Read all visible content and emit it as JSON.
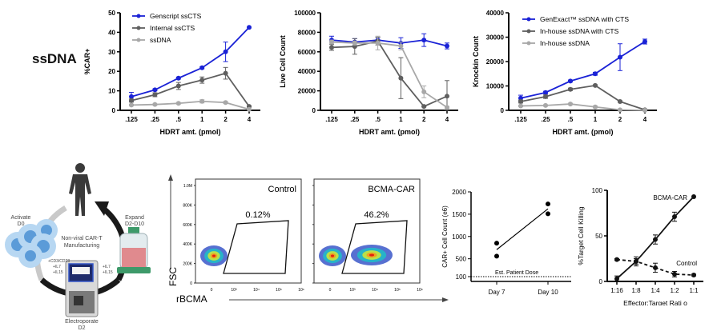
{
  "row_label": "ssDNA",
  "colors": {
    "blue": "#1a22d6",
    "dark_gray": "#5f5f5f",
    "light_gray": "#a8a8a8",
    "black": "#111111"
  },
  "chart_data": [
    {
      "id": "car-percent",
      "type": "line",
      "title": "",
      "xlabel": "HDRT amt. (pmol)",
      "ylabel": "%CAR+",
      "categories": [
        ".125",
        ".25",
        ".5",
        "1",
        "2",
        "4"
      ],
      "ylim": [
        0,
        50
      ],
      "yticks": [
        0,
        10,
        20,
        30,
        40,
        50
      ],
      "ytick_labels": [
        "0",
        "10",
        "20",
        "30",
        "40",
        "50"
      ],
      "legend_position": "top-left",
      "series": [
        {
          "name": "Genscript ssCTS",
          "color": "blue",
          "values": [
            7,
            10.5,
            16.5,
            21.8,
            30,
            42.5
          ],
          "errors": [
            2.2,
            0.5,
            0.5,
            0.5,
            5,
            0
          ]
        },
        {
          "name": "Internal ssCTS",
          "color": "dark_gray",
          "values": [
            5,
            8,
            12.5,
            15.5,
            19,
            2
          ],
          "errors": [
            0.8,
            1,
            1.8,
            1.6,
            3,
            0.3
          ]
        },
        {
          "name": "ssDNA",
          "color": "light_gray",
          "values": [
            2.7,
            3,
            3.6,
            4.6,
            4,
            0.5
          ],
          "errors": [
            0.4,
            0.3,
            0.4,
            0.8,
            0.5,
            0.2
          ]
        }
      ]
    },
    {
      "id": "live-cell-count",
      "type": "line",
      "title": "",
      "xlabel": "HDRT amt. (pmol)",
      "ylabel": "Live Cell Count",
      "categories": [
        ".125",
        ".25",
        ".5",
        "1",
        "2",
        "4"
      ],
      "ylim": [
        0,
        100000
      ],
      "yticks": [
        0,
        20000,
        40000,
        60000,
        80000,
        100000
      ],
      "ytick_labels": [
        "0",
        "20000",
        "40000",
        "60000",
        "80000",
        "100000"
      ],
      "legend_position": "none",
      "series": [
        {
          "name": "Genscript ssCTS",
          "color": "blue",
          "values": [
            72000,
            70000,
            72000,
            69000,
            72000,
            66000
          ],
          "errors": [
            4000,
            3500,
            3000,
            5500,
            6500,
            3000
          ]
        },
        {
          "name": "Internal ssCTS",
          "color": "dark_gray",
          "values": [
            64500,
            65500,
            71000,
            33000,
            4000,
            14500
          ],
          "errors": [
            3000,
            8000,
            4000,
            21000,
            500,
            16000
          ]
        },
        {
          "name": "ssDNA",
          "color": "light_gray",
          "values": [
            70000,
            69000,
            69000,
            66000,
            19000,
            3000
          ],
          "errors": [
            2000,
            2000,
            7000,
            4000,
            6000,
            1000
          ]
        }
      ]
    },
    {
      "id": "knockin-count",
      "type": "line",
      "title": "",
      "xlabel": "HDRT amt. (pmol)",
      "ylabel": "Knockin  Count",
      "categories": [
        ".125",
        ".25",
        ".5",
        "1",
        "2",
        "4"
      ],
      "ylim": [
        0,
        40000
      ],
      "yticks": [
        0,
        10000,
        20000,
        30000,
        40000
      ],
      "ytick_labels": [
        "0",
        "10000",
        "20000",
        "30000",
        "40000"
      ],
      "legend_position": "top-left",
      "series": [
        {
          "name": "GenExact™ ssDNA with CTS",
          "color": "blue",
          "values": [
            5000,
            7300,
            12000,
            15000,
            21800,
            28200
          ],
          "errors": [
            1200,
            500,
            400,
            600,
            5500,
            1000
          ]
        },
        {
          "name": "In-house ssDNA with CTS",
          "color": "dark_gray",
          "values": [
            3600,
            5600,
            8600,
            10200,
            3600,
            200
          ],
          "errors": [
            600,
            700,
            500,
            300,
            300,
            100
          ]
        },
        {
          "name": "In-house ssDNA",
          "color": "light_gray",
          "values": [
            1800,
            2000,
            2600,
            1400,
            200,
            0
          ],
          "errors": [
            300,
            300,
            300,
            400,
            100,
            0
          ]
        }
      ]
    },
    {
      "id": "flow-control",
      "type": "scatter",
      "title": "Control",
      "xlabel": "rBCMA",
      "ylabel": "FSC",
      "gate_percent": "0.12%",
      "yticks_labels": [
        "0",
        "200K",
        "400K",
        "600K",
        "800K",
        "1.0M"
      ],
      "xtick_labels": [
        "0",
        "10³",
        "10⁴",
        "10⁵",
        "10⁶"
      ]
    },
    {
      "id": "flow-bcma-car",
      "type": "scatter",
      "title": "BCMA-CAR",
      "xlabel": "rBCMA",
      "ylabel": "FSC",
      "gate_percent": "46.2%",
      "xtick_labels": [
        "0",
        "10³",
        "10⁴",
        "10⁵",
        "10⁶"
      ]
    },
    {
      "id": "car-cell-count",
      "type": "scatter",
      "title": "",
      "xlabel": "",
      "ylabel": "CAR+ Cell Count  (e6)",
      "categories": [
        "Day 7",
        "Day 10"
      ],
      "ylim": [
        0,
        2000
      ],
      "yticks": [
        100,
        500,
        1000,
        1500,
        2000
      ],
      "ytick_labels": [
        "100",
        "500",
        "1000",
        "1500",
        "2000"
      ],
      "points": [
        {
          "x": "Day 7",
          "y": 850
        },
        {
          "x": "Day 7",
          "y": 560
        },
        {
          "x": "Day 10",
          "y": 1730
        },
        {
          "x": "Day 10",
          "y": 1510
        }
      ],
      "fit_line": {
        "from": 705,
        "to": 1620
      },
      "reference_line": {
        "y": 100,
        "label": "Est. Patient Dose",
        "style": "dotted"
      }
    },
    {
      "id": "target-cell-killing",
      "type": "line",
      "title": "",
      "xlabel": "Effector:Target Rati  o",
      "ylabel": "%Target Cell Killing",
      "categories": [
        "1:16",
        "1:8",
        "1:4",
        "1:2",
        "1:1"
      ],
      "ylim": [
        0,
        100
      ],
      "yticks": [
        0,
        50,
        100
      ],
      "ytick_labels": [
        "0",
        "50",
        "100"
      ],
      "series": [
        {
          "name": "BCMA-CAR",
          "style": "solid",
          "values": [
            3,
            22,
            46,
            71,
            93
          ],
          "errors": [
            3,
            3,
            5,
            5,
            0
          ]
        },
        {
          "name": "Control",
          "style": "dashed",
          "values": [
            24,
            22,
            15,
            8,
            7
          ],
          "errors": [
            1,
            5,
            5,
            3,
            1
          ]
        }
      ]
    }
  ],
  "diagram": {
    "center_label_1": "Non-viral CAR-T",
    "center_label_2": "Manufacturing",
    "activate_1": "Activate",
    "activate_2": "D0",
    "expand_1": "Expand",
    "expand_2": "D2-D10",
    "electroporate_1": "Electroporate",
    "electroporate_2": "D2",
    "left_additives": [
      "+CD3/CD28",
      "+IL7",
      "+IL15"
    ],
    "right_additives": [
      "+IL7",
      "+IL15"
    ]
  }
}
